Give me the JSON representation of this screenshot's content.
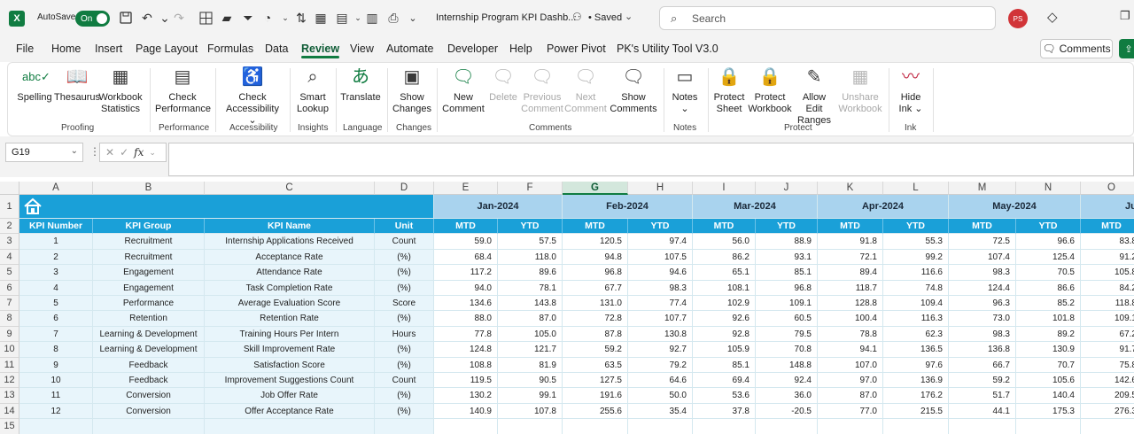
{
  "app": {
    "logo_letter": "X",
    "autosave_label": "AutoSave",
    "autosave_state": "On",
    "title": "Internship Program KPI Dashb...",
    "saved_status": "• Saved",
    "search_placeholder": "Search",
    "user_initials": "PS"
  },
  "menu": {
    "tabs": [
      "File",
      "Home",
      "Insert",
      "Page Layout",
      "Formulas",
      "Data",
      "Review",
      "View",
      "Automate",
      "Developer",
      "Help",
      "Power Pivot",
      "PK's Utility Tool V3.0"
    ],
    "active_tab": "Review",
    "comments_button": "Comments"
  },
  "ribbon": {
    "buttons": [
      {
        "label": "Spelling",
        "icon": "spelling-icon",
        "enabled": true
      },
      {
        "label": "Thesaurus",
        "icon": "thesaurus-icon",
        "enabled": true
      },
      {
        "label": "Workbook Statistics",
        "icon": "workbook-statistics-icon",
        "enabled": true
      },
      {
        "label": "Check Performance",
        "icon": "check-performance-icon",
        "enabled": true
      },
      {
        "label": "Check Accessibility ⌄",
        "icon": "accessibility-icon",
        "enabled": true
      },
      {
        "label": "Smart Lookup",
        "icon": "smart-lookup-icon",
        "enabled": true
      },
      {
        "label": "Translate",
        "icon": "translate-icon",
        "enabled": true
      },
      {
        "label": "Show Changes",
        "icon": "show-changes-icon",
        "enabled": true
      },
      {
        "label": "New Comment",
        "icon": "new-comment-icon",
        "enabled": true
      },
      {
        "label": "Delete",
        "icon": "delete-comment-icon",
        "enabled": false
      },
      {
        "label": "Previous Comment",
        "icon": "previous-comment-icon",
        "enabled": false
      },
      {
        "label": "Next Comment",
        "icon": "next-comment-icon",
        "enabled": false
      },
      {
        "label": "Show Comments",
        "icon": "show-comments-icon",
        "enabled": true
      },
      {
        "label": "Notes ⌄",
        "icon": "notes-icon",
        "enabled": true
      },
      {
        "label": "Protect Sheet",
        "icon": "protect-sheet-icon",
        "enabled": true
      },
      {
        "label": "Protect Workbook",
        "icon": "protect-workbook-icon",
        "enabled": true
      },
      {
        "label": "Allow Edit Ranges",
        "icon": "allow-edit-ranges-icon",
        "enabled": true
      },
      {
        "label": "Unshare Workbook",
        "icon": "unshare-workbook-icon",
        "enabled": false
      },
      {
        "label": "Hide Ink ⌄",
        "icon": "hide-ink-icon",
        "enabled": true
      }
    ],
    "groups": [
      "Proofing",
      "Performance",
      "Accessibility",
      "Insights",
      "Language",
      "Changes",
      "Comments",
      "Notes",
      "Protect",
      "Ink"
    ]
  },
  "formula_bar": {
    "name_box": "G19",
    "fx_label": "fx",
    "formula": ""
  },
  "sheet": {
    "columns": [
      "A",
      "B",
      "C",
      "D",
      "E",
      "F",
      "G",
      "H",
      "I",
      "J",
      "K",
      "L",
      "M",
      "N",
      "O"
    ],
    "selected_column": "G",
    "rows": [
      "1",
      "2",
      "3",
      "4",
      "5",
      "6",
      "7",
      "8",
      "9",
      "10",
      "11",
      "12",
      "13",
      "14",
      "15"
    ],
    "months": [
      "Jan-2024",
      "Feb-2024",
      "Mar-2024",
      "Apr-2024",
      "May-2024",
      "Ju"
    ],
    "headers": [
      "KPI Number",
      "KPI Group",
      "KPI Name",
      "Unit",
      "MTD",
      "YTD",
      "MTD",
      "YTD",
      "MTD",
      "YTD",
      "MTD",
      "YTD",
      "MTD",
      "YTD",
      "MTD"
    ],
    "data": [
      [
        "1",
        "Recruitment",
        "Internship Applications Received",
        "Count",
        "59.0",
        "57.5",
        "120.5",
        "97.4",
        "56.0",
        "88.9",
        "91.8",
        "55.3",
        "72.5",
        "96.6",
        "83.8"
      ],
      [
        "2",
        "Recruitment",
        "Acceptance Rate",
        "(%)",
        "68.4",
        "118.0",
        "94.8",
        "107.5",
        "86.2",
        "93.1",
        "72.1",
        "99.2",
        "107.4",
        "125.4",
        "91.2"
      ],
      [
        "3",
        "Engagement",
        "Attendance Rate",
        "(%)",
        "117.2",
        "89.6",
        "96.8",
        "94.6",
        "65.1",
        "85.1",
        "89.4",
        "116.6",
        "98.3",
        "70.5",
        "105.8"
      ],
      [
        "4",
        "Engagement",
        "Task Completion Rate",
        "(%)",
        "94.0",
        "78.1",
        "67.7",
        "98.3",
        "108.1",
        "96.8",
        "118.7",
        "74.8",
        "124.4",
        "86.6",
        "84.2"
      ],
      [
        "5",
        "Performance",
        "Average Evaluation Score",
        "Score",
        "134.6",
        "143.8",
        "131.0",
        "77.4",
        "102.9",
        "109.1",
        "128.8",
        "109.4",
        "96.3",
        "85.2",
        "118.8"
      ],
      [
        "6",
        "Retention",
        "Retention Rate",
        "(%)",
        "88.0",
        "87.0",
        "72.8",
        "107.7",
        "92.6",
        "60.5",
        "100.4",
        "116.3",
        "73.0",
        "101.8",
        "109.1"
      ],
      [
        "7",
        "Learning & Development",
        "Training Hours Per Intern",
        "Hours",
        "77.8",
        "105.0",
        "87.8",
        "130.8",
        "92.8",
        "79.5",
        "78.8",
        "62.3",
        "98.3",
        "89.2",
        "67.2"
      ],
      [
        "8",
        "Learning & Development",
        "Skill Improvement Rate",
        "(%)",
        "124.8",
        "121.7",
        "59.2",
        "92.7",
        "105.9",
        "70.8",
        "94.1",
        "136.5",
        "136.8",
        "130.9",
        "91.7"
      ],
      [
        "9",
        "Feedback",
        "Satisfaction Score",
        "(%)",
        "108.8",
        "81.9",
        "63.5",
        "79.2",
        "85.1",
        "148.8",
        "107.0",
        "97.6",
        "66.7",
        "70.7",
        "75.8"
      ],
      [
        "10",
        "Feedback",
        "Improvement Suggestions Count",
        "Count",
        "119.5",
        "90.5",
        "127.5",
        "64.6",
        "69.4",
        "92.4",
        "97.0",
        "136.9",
        "59.2",
        "105.6",
        "142.6"
      ],
      [
        "11",
        "Conversion",
        "Job Offer Rate",
        "(%)",
        "130.2",
        "99.1",
        "191.6",
        "50.0",
        "53.6",
        "36.0",
        "87.0",
        "176.2",
        "51.7",
        "140.4",
        "209.5"
      ],
      [
        "12",
        "Conversion",
        "Offer Acceptance Rate",
        "(%)",
        "140.9",
        "107.8",
        "255.6",
        "35.4",
        "37.8",
        "-20.5",
        "77.0",
        "215.5",
        "44.1",
        "175.3",
        "276.3"
      ]
    ]
  },
  "colors": {
    "excel_green": "#107c41",
    "table_header_blue": "#1aa0d8",
    "month_header_blue": "#a9d3ee",
    "row_band": "#e8f5fb",
    "avatar_red": "#d13438"
  }
}
